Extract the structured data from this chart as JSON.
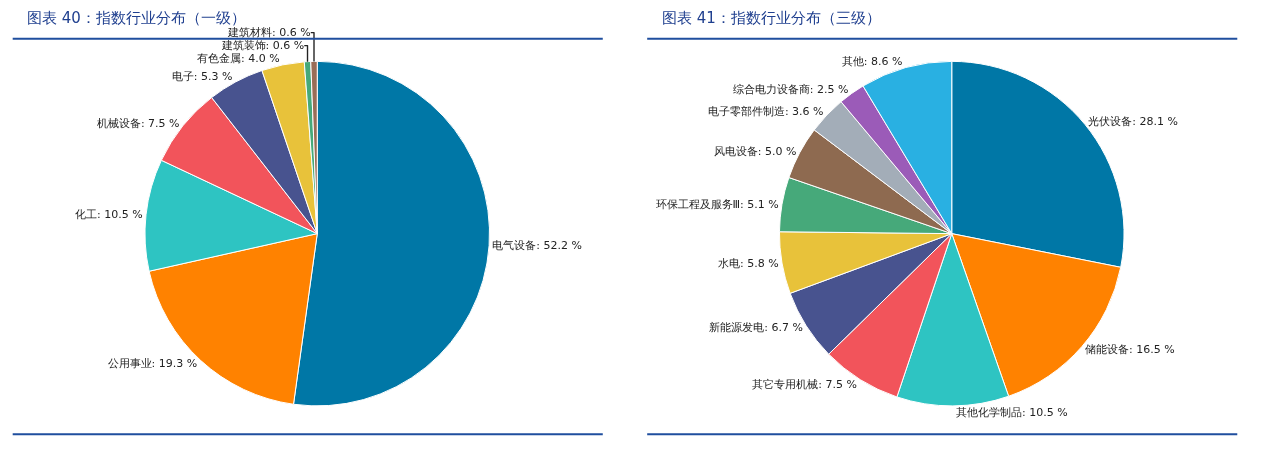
{
  "chart_data": [
    {
      "type": "pie",
      "title": "图表 40：指数行业分布（一级）",
      "categories": [
        "电气设备",
        "公用事业",
        "化工",
        "机械设备",
        "电子",
        "有色金属",
        "建筑装饰",
        "建筑材料"
      ],
      "values": [
        52.2,
        19.3,
        10.5,
        7.5,
        5.3,
        4.0,
        0.6,
        0.6
      ],
      "value_labels": [
        "52.2 %",
        "19.3 %",
        "10.5 %",
        "7.5 %",
        "5.3 %",
        "4.0 %",
        "0.6 %",
        "0.6 %"
      ],
      "colors": [
        "#0077a6",
        "#ff8200",
        "#2ec4c2",
        "#f2545b",
        "#48538f",
        "#e8c23a",
        "#46a97a",
        "#9a6d57"
      ]
    },
    {
      "type": "pie",
      "title": "图表 41：指数行业分布（三级）",
      "categories": [
        "光伏设备",
        "储能设备",
        "其他化学制品",
        "其它专用机械",
        "新能源发电",
        "水电",
        "环保工程及服务Ⅲ",
        "风电设备",
        "电子零部件制造",
        "综合电力设备商",
        "其他"
      ],
      "values": [
        28.1,
        16.5,
        10.5,
        7.5,
        6.7,
        5.8,
        5.1,
        5.0,
        3.6,
        2.5,
        8.6
      ],
      "value_labels": [
        "28.1 %",
        "16.5 %",
        "10.5 %",
        "7.5 %",
        "6.7 %",
        "5.8 %",
        "5.1 %",
        "5.0 %",
        "3.6 %",
        "2.5 %",
        "8.6 %"
      ],
      "colors": [
        "#0077a6",
        "#ff8200",
        "#2ec4c2",
        "#f2545b",
        "#48538f",
        "#e8c23a",
        "#46a97a",
        "#8e6a50",
        "#a3adb8",
        "#9b5bb8",
        "#29b0e2"
      ]
    }
  ]
}
